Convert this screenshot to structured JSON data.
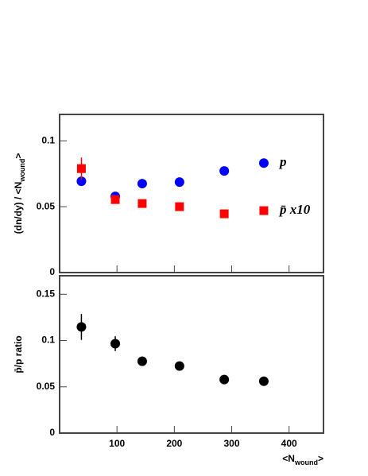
{
  "chart_data": [
    {
      "type": "scatter",
      "y_label": [
        "(dn/dy) / <N",
        "wound",
        ">"
      ],
      "x": [
        38,
        97,
        144,
        209,
        287,
        356
      ],
      "xlim": [
        0,
        460
      ],
      "xticks": [
        100,
        200,
        300,
        400
      ],
      "ylim": [
        0,
        0.12
      ],
      "yticks": [
        0,
        0.05,
        0.1
      ],
      "series": [
        {
          "name": "p",
          "color": "#0000ff",
          "marker": "circle",
          "values": [
            0.0693,
            0.0578,
            0.0675,
            0.0687,
            0.0771,
            0.0831
          ],
          "errors": [
            0.0015,
            0.0015,
            0.0015,
            0.0015,
            0.0015,
            0.0015
          ]
        },
        {
          "name": "p̄ x10",
          "color": "#ff0000",
          "marker": "square",
          "values": [
            0.0789,
            0.0554,
            0.0524,
            0.05,
            0.0446,
            0.047
          ],
          "errors": [
            0.0084,
            0.003,
            0.002,
            0.002,
            0.002,
            0.003
          ]
        }
      ]
    },
    {
      "type": "scatter",
      "y_label": [
        "p̄/p ratio"
      ],
      "x_label": [
        "<N",
        "wound",
        ">"
      ],
      "x": [
        38,
        97,
        144,
        209,
        287,
        356
      ],
      "xlim": [
        0,
        460
      ],
      "xticks": [
        100,
        200,
        300,
        400
      ],
      "ylim": [
        0,
        0.17
      ],
      "yticks": [
        0,
        0.05,
        0.1,
        0.15
      ],
      "series": [
        {
          "color": "#000000",
          "marker": "circle",
          "values": [
            0.1147,
            0.0966,
            0.0776,
            0.0724,
            0.0578,
            0.056
          ],
          "errors": [
            0.014,
            0.008,
            0.005,
            0.003,
            0.003,
            0.003
          ]
        }
      ]
    }
  ]
}
